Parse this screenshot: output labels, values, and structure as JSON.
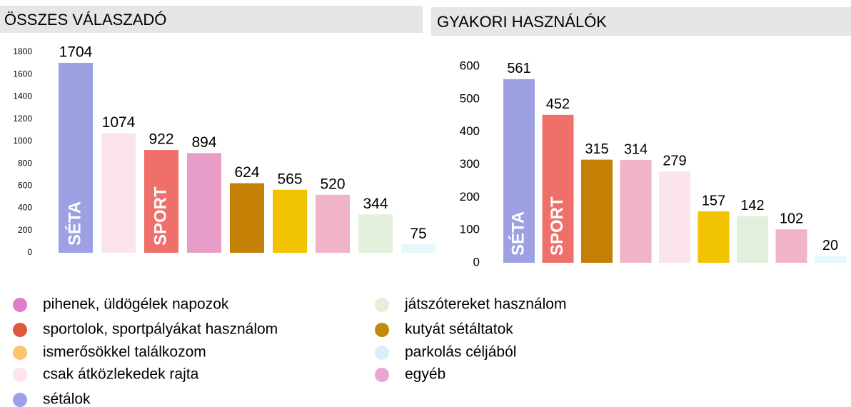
{
  "chart_data": [
    {
      "type": "bar",
      "title": "ÖSSZES VÁLASZADÓ",
      "values": [
        1704,
        1074,
        922,
        894,
        624,
        565,
        520,
        344,
        75
      ],
      "colors": [
        "#9da1e3",
        "#fbe4ec",
        "#ef706a",
        "#e89cc8",
        "#c47f05",
        "#f2c300",
        "#f0b3c7",
        "#e2efda",
        "#e4f8fb"
      ],
      "ylim": [
        0,
        1800
      ],
      "yticks": [
        0,
        200,
        400,
        600,
        800,
        1000,
        1200,
        1400,
        1600,
        1800
      ],
      "annotations": [
        {
          "text": "SÉTA",
          "bar": 0
        },
        {
          "text": "SPORT",
          "bar": 2
        }
      ]
    },
    {
      "type": "bar",
      "title": "GYAKORI HASZNÁLÓK",
      "values": [
        561,
        452,
        315,
        314,
        279,
        157,
        142,
        102,
        20
      ],
      "colors": [
        "#9da1e3",
        "#ef706a",
        "#c47f05",
        "#f0b3c7",
        "#fbe4ec",
        "#f2c300",
        "#e2efda",
        "#f0b3c7",
        "#e4f8fb"
      ],
      "ylim": [
        0,
        600
      ],
      "yticks": [
        0,
        100,
        200,
        300,
        400,
        500,
        600
      ],
      "annotations": [
        {
          "text": "SÉTA",
          "bar": 0
        },
        {
          "text": "SPORT",
          "bar": 1
        }
      ]
    }
  ],
  "legend": {
    "items": [
      {
        "label": "pihenek, üldögélek napozok",
        "color": "#e07ccc"
      },
      {
        "label": "sportolok, sportpályákat használom",
        "color": "#e0583a"
      },
      {
        "label": "ismerősökkel találkozom",
        "color": "#fcc46e"
      },
      {
        "label": "csak átközlekedek rajta",
        "color": "#fde4ee"
      },
      {
        "label": "sétálok",
        "color": "#9ba0e8"
      },
      {
        "label": "játszótereket használom",
        "color": "#e2efda"
      },
      {
        "label": "kutyát sétáltatok",
        "color": "#c08a0a"
      },
      {
        "label": "parkolás céljából",
        "color": "#ddeef8"
      },
      {
        "label": "egyéb",
        "color": "#eba5d2"
      }
    ]
  }
}
